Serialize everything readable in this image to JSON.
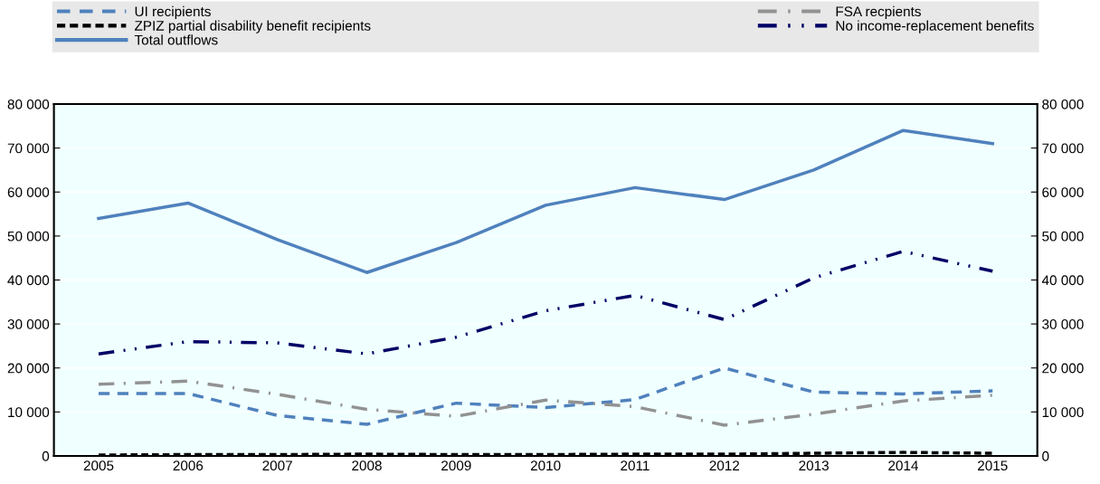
{
  "chart_data": {
    "type": "line",
    "categories": [
      "2005",
      "2006",
      "2007",
      "2008",
      "2009",
      "2010",
      "2011",
      "2012",
      "2013",
      "2014",
      "2015"
    ],
    "series": [
      {
        "name": "UI recipients",
        "color": "#4f81bd",
        "line_style": "dashed",
        "values": [
          14200,
          14200,
          9200,
          7200,
          12000,
          11000,
          12800,
          20000,
          14500,
          14100,
          14800
        ]
      },
      {
        "name": "ZPIZ partial disability benefit recipients",
        "color": "#000000",
        "line_style": "short dashed",
        "values": [
          200,
          300,
          300,
          400,
          300,
          300,
          400,
          400,
          600,
          800,
          600
        ]
      },
      {
        "name": "Total outflows",
        "color": "#4f81bd",
        "line_style": "solid",
        "values": [
          54000,
          57500,
          49200,
          41700,
          48500,
          57000,
          61000,
          58300,
          65000,
          74000,
          71000
        ]
      },
      {
        "name": "FSA recpients",
        "color": "#929292",
        "line_style": "dashdot",
        "values": [
          16300,
          17000,
          14000,
          10600,
          9000,
          12700,
          11200,
          7000,
          9500,
          12500,
          13800
        ]
      },
      {
        "name": "No income-replacement benefits",
        "color": "#000066",
        "line_style": "dashdotdot",
        "values": [
          23200,
          26000,
          25700,
          23200,
          27000,
          33000,
          36500,
          31000,
          40500,
          46500,
          42000
        ]
      }
    ],
    "ylim": [
      0,
      80000
    ],
    "yticks": [
      {
        "value": 0,
        "label": "0"
      },
      {
        "value": 10000,
        "label": "10 000"
      },
      {
        "value": 20000,
        "label": "20 000"
      },
      {
        "value": 30000,
        "label": "30 000"
      },
      {
        "value": 40000,
        "label": "40 000"
      },
      {
        "value": 50000,
        "label": "50 000"
      },
      {
        "value": 60000,
        "label": "60 000"
      },
      {
        "value": 70000,
        "label": "70 000"
      },
      {
        "value": 80000,
        "label": "80 000"
      }
    ],
    "y2lim": [
      0,
      80000
    ],
    "y2ticks": [
      {
        "value": 0,
        "label": "0"
      },
      {
        "value": 10000,
        "label": "10 000"
      },
      {
        "value": 20000,
        "label": "20 000"
      },
      {
        "value": 30000,
        "label": "30 000"
      },
      {
        "value": 40000,
        "label": "40 000"
      },
      {
        "value": 50000,
        "label": "50 000"
      },
      {
        "value": 60000,
        "label": "60 000"
      },
      {
        "value": 70000,
        "label": "70 000"
      },
      {
        "value": 80000,
        "label": "80 000"
      }
    ],
    "grid": true,
    "legend": "top",
    "marker": "none"
  }
}
